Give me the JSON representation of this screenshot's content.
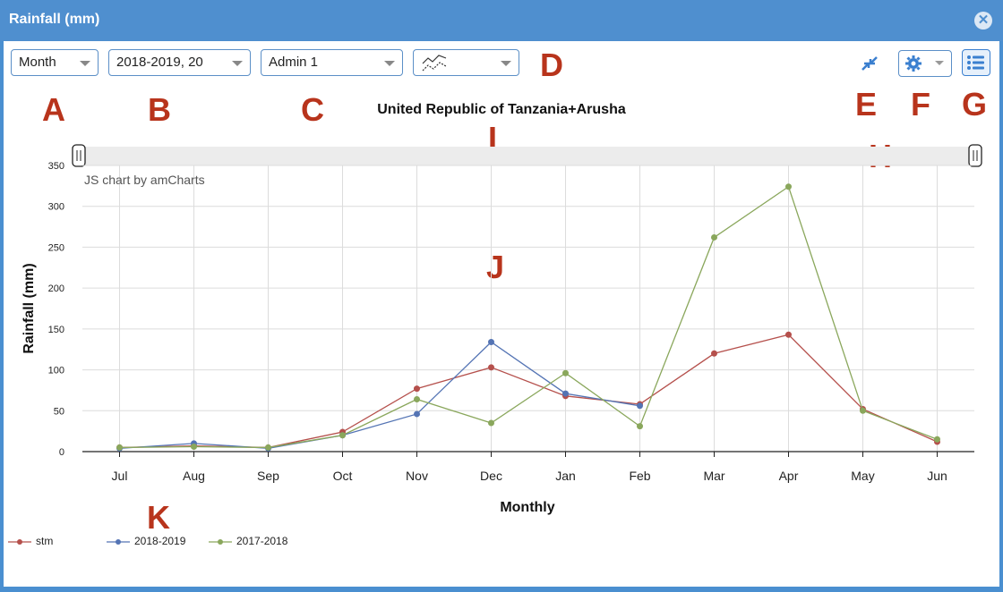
{
  "window": {
    "title": "Rainfall (mm)"
  },
  "toolbar": {
    "period_select": "Month",
    "season_select": "2018-2019, 20",
    "admin_select": "Admin 1"
  },
  "annotations": {
    "A": "A",
    "B": "B",
    "C": "C",
    "D": "D",
    "E": "E",
    "F": "F",
    "G": "G",
    "H": "H",
    "I": "I",
    "J": "J",
    "K": "K"
  },
  "watermark": "JS chart by amCharts",
  "colors": {
    "stm": "#b5504c",
    "s2018": "#5474b4",
    "s2017": "#8aa75c",
    "accent": "#4f8fcf"
  },
  "chart_data": {
    "type": "line",
    "title": "United Republic of Tanzania+Arusha",
    "xlabel": "Monthly",
    "ylabel": "Rainfall (mm)",
    "ylim": [
      0,
      350
    ],
    "yticks": [
      "0",
      "50",
      "100",
      "150",
      "200",
      "250",
      "300",
      "350"
    ],
    "categories": [
      "Jul",
      "Aug",
      "Sep",
      "Oct",
      "Nov",
      "Dec",
      "Jan",
      "Feb",
      "Mar",
      "Apr",
      "May",
      "Jun"
    ],
    "series": [
      {
        "name": "stm",
        "color": "#b5504c",
        "values": [
          5,
          7,
          5,
          24,
          77,
          103,
          68,
          58,
          120,
          143,
          52,
          12
        ]
      },
      {
        "name": "2018-2019",
        "color": "#5474b4",
        "values": [
          4,
          10,
          4,
          20,
          46,
          134,
          71,
          56,
          null,
          null,
          null,
          null
        ]
      },
      {
        "name": "2017-2018",
        "color": "#8aa75c",
        "values": [
          5,
          6,
          5,
          20,
          64,
          35,
          96,
          31,
          262,
          324,
          50,
          15
        ]
      }
    ],
    "grid": true,
    "legend": "bottom-left"
  }
}
